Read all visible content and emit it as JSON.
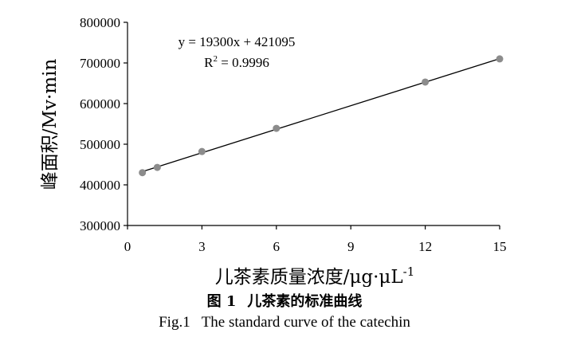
{
  "chart_data": {
    "type": "scatter",
    "x": [
      0.6,
      1.2,
      3,
      6,
      12,
      15
    ],
    "y": [
      430000,
      443000,
      482000,
      539000,
      653000,
      710000
    ],
    "trendline": {
      "slope": 19300,
      "intercept": 421095
    },
    "xlim": [
      0,
      15
    ],
    "ylim": [
      300000,
      800000
    ],
    "x_ticks": [
      "0",
      "3",
      "6",
      "9",
      "12",
      "15"
    ],
    "y_ticks": [
      "300000",
      "400000",
      "500000",
      "600000",
      "700000",
      "800000"
    ],
    "xlabel": "儿茶素质量浓度/μg·μL",
    "xlabel_sup": "-1",
    "ylabel": "峰面积/Mv·min",
    "equation": "y = 19300x + 421095",
    "r2_prefix": "R",
    "r2_sup": "2",
    "r2_value": " = 0.9996",
    "grid": false,
    "point_color": "#8c8c8c",
    "line_color": "#000000"
  },
  "caption": {
    "cn_num": "图 1",
    "cn_title": "儿茶素的标准曲线",
    "en_num": "Fig.1",
    "en_title": "The standard curve of the catechin"
  }
}
